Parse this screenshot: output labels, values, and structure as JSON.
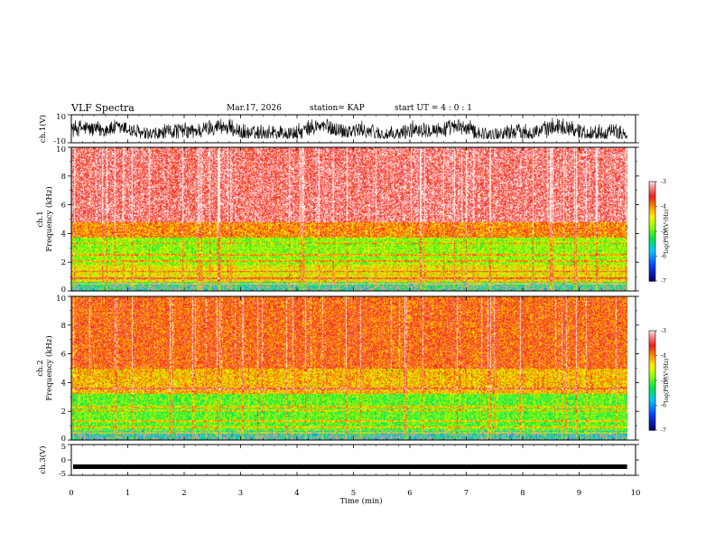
{
  "header": {
    "title": "VLF Spectra",
    "date": "Mar.17, 2026",
    "station": "station= KAP",
    "start_time": "start  UT =   4 : 0  : 1"
  },
  "chart_data": [
    {
      "type": "line",
      "name": "ch1-waveform",
      "ylabel": "ch.1(V)",
      "ylim": [
        -10,
        10
      ],
      "yticks": [
        "10",
        "-10"
      ],
      "xlim": [
        0,
        10
      ],
      "trace_end_min": 9.85,
      "description_level_range": [
        -5,
        6
      ]
    },
    {
      "type": "heatmap",
      "name": "ch1-spectrogram",
      "ylabel_line1": "ch.1",
      "ylabel_line2": "Frequency (kHz)",
      "ylim": [
        0,
        10
      ],
      "yticks": [
        "0",
        "2",
        "4",
        "6",
        "8",
        "10"
      ],
      "xlim": [
        0,
        10
      ],
      "data_end_min": 9.85,
      "bands_khz": [
        {
          "from": 0,
          "to": 0.6,
          "log_psd": -5.5
        },
        {
          "from": 0.6,
          "to": 1.8,
          "log_psd": -4.4
        },
        {
          "from": 1.8,
          "to": 3.7,
          "log_psd": -4.8
        },
        {
          "from": 3.7,
          "to": 4.8,
          "log_psd": -4.0
        },
        {
          "from": 4.8,
          "to": 10,
          "log_psd": -3.3
        }
      ],
      "colorbar": {
        "label": "log(PSD)(V²/Hz)",
        "min": -7,
        "max": -3,
        "ticks": [
          "-3",
          "-4",
          "-5",
          "-6",
          "-7"
        ]
      }
    },
    {
      "type": "heatmap",
      "name": "ch2-spectrogram",
      "ylabel_line1": "ch.2",
      "ylabel_line2": "Frequency (kHz)",
      "ylim": [
        0,
        10
      ],
      "yticks": [
        "0",
        "2",
        "4",
        "6",
        "8",
        "10"
      ],
      "xlim": [
        0,
        10
      ],
      "data_end_min": 9.85,
      "bands_khz": [
        {
          "from": 0,
          "to": 0.6,
          "log_psd": -5.6
        },
        {
          "from": 0.6,
          "to": 3.2,
          "log_psd": -5.0
        },
        {
          "from": 3.2,
          "to": 5.0,
          "log_psd": -4.2
        },
        {
          "from": 5.0,
          "to": 10,
          "log_psd": -3.8
        }
      ],
      "colorbar": {
        "label": "log(PSD)(V²/Hz)",
        "min": -7,
        "max": -3,
        "ticks": [
          "-3",
          "-4",
          "-5",
          "-6",
          "-7"
        ]
      }
    },
    {
      "type": "line",
      "name": "ch3-waveform",
      "ylabel": "ch.3(V)",
      "ylim": [
        -5,
        5
      ],
      "yticks": [
        "5",
        "0",
        "-5"
      ],
      "xlim": [
        0,
        10
      ],
      "level_v": -2.2,
      "trace_end_min": 9.85
    }
  ],
  "xaxis": {
    "label": "Time (min)",
    "ticks": [
      "0",
      "1",
      "2",
      "3",
      "4",
      "5",
      "6",
      "7",
      "8",
      "9",
      "10"
    ]
  }
}
